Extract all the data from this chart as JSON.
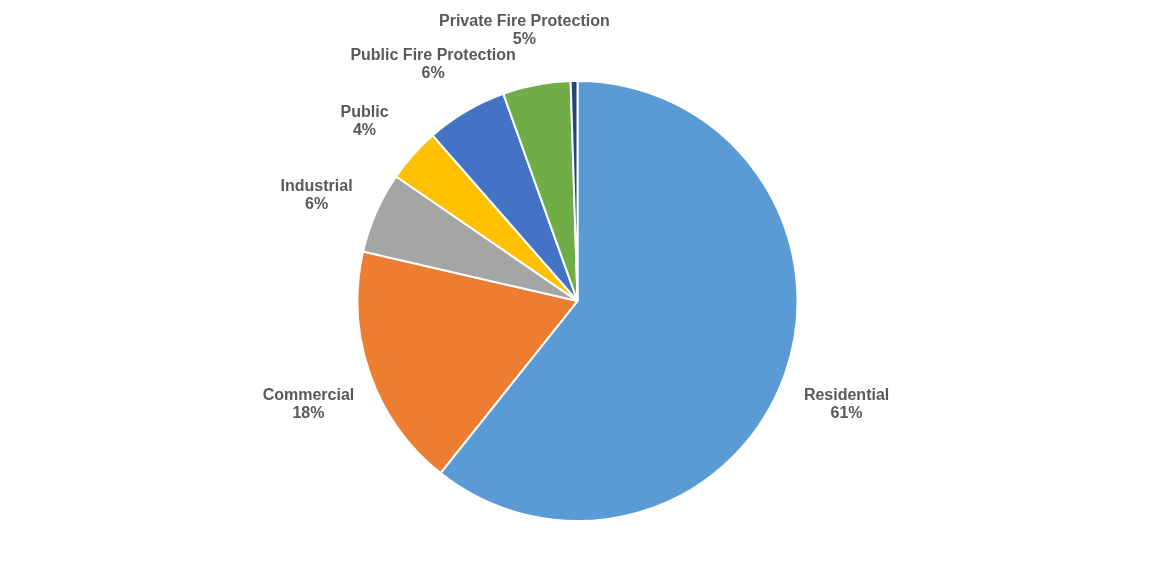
{
  "chart_data": {
    "type": "pie",
    "categories": [
      "Residential",
      "Commercial",
      "Industrial",
      "Public",
      "Public Fire Protection",
      "Private Fire Protection",
      null
    ],
    "values": [
      61,
      18,
      6,
      4,
      6,
      5,
      0.5
    ],
    "value_labels": [
      "61%",
      "18%",
      "6%",
      "4%",
      "6%",
      "5%",
      null
    ],
    "colors": [
      "#5b9bd5",
      "#ed7d31",
      "#a5a5a5",
      "#ffc000",
      "#4472c4",
      "#70ad47",
      "#264478"
    ],
    "legend": false
  }
}
